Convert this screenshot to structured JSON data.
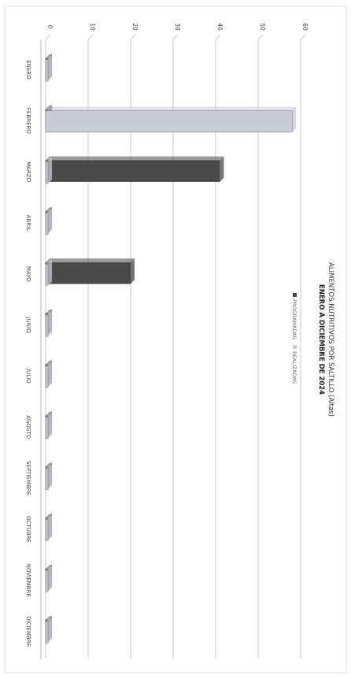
{
  "chart_data": {
    "type": "bar",
    "title": "ALIMENTOS NUTRITIVOS POR SALTILLO  (Altas)",
    "subtitle": "ENERO A DICIEMBRE DE 2024",
    "categories": [
      "ENERO",
      "FEBRERO",
      "MARZO",
      "ABRIL",
      "MAYO",
      "JUNIO",
      "JULIO",
      "AGOSTO",
      "SEPTIEMBRE",
      "OCTUBRE",
      "NOVIEMBRE",
      "DICIEMBRE"
    ],
    "series": [
      {
        "name": "PROGRAMADAS",
        "color": "#4a4a4a",
        "values": [
          0,
          0,
          41,
          0,
          20,
          0,
          0,
          0,
          0,
          0,
          0,
          0
        ]
      },
      {
        "name": "REALIZADAS",
        "color": "#c9cbd6",
        "values": [
          0,
          58,
          0,
          0,
          0,
          0,
          0,
          0,
          0,
          0,
          0,
          0
        ]
      }
    ],
    "ylim": [
      0,
      60
    ],
    "yticks": [
      0,
      10,
      20,
      30,
      40,
      50,
      60
    ],
    "grid": true,
    "legend": "bottom"
  }
}
